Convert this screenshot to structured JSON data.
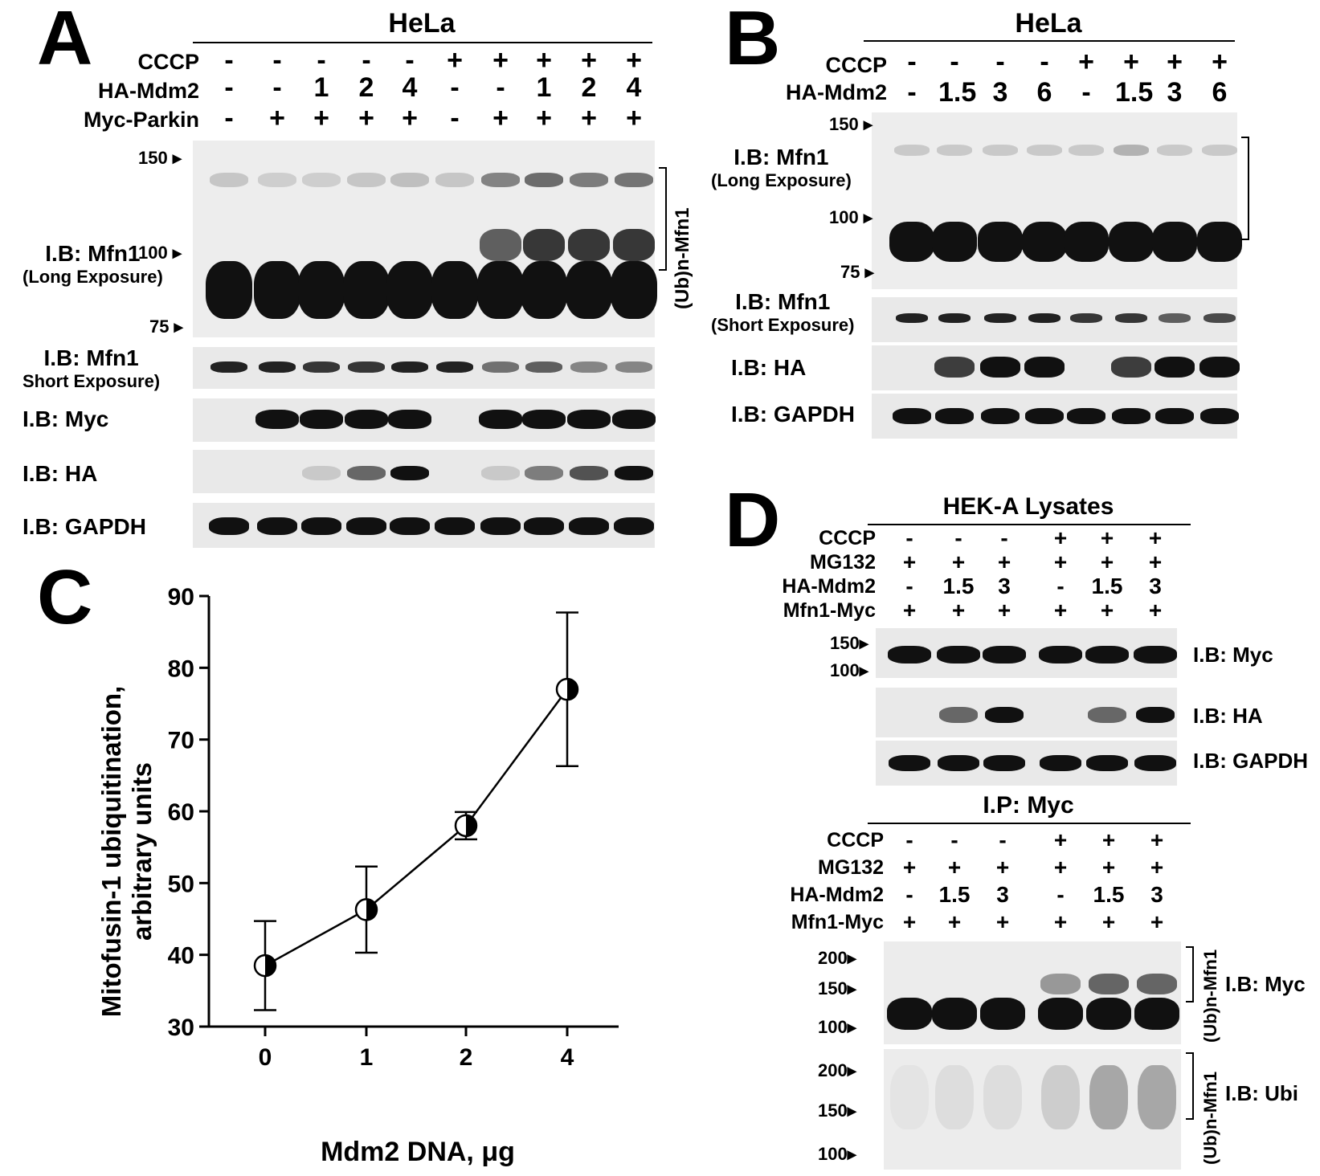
{
  "panelA": {
    "letter": "A",
    "cell_line": "HeLa",
    "row_labels": [
      "CCCP",
      "HA-Mdm2",
      "Myc-Parkin"
    ],
    "cccp": [
      "-",
      "-",
      "-",
      "-",
      "-",
      "+",
      "+",
      "+",
      "+",
      "+"
    ],
    "mdm2": [
      "-",
      "-",
      "1",
      "2",
      "4",
      "-",
      "-",
      "1",
      "2",
      "4"
    ],
    "parkin": [
      "-",
      "+",
      "+",
      "+",
      "+",
      "-",
      "+",
      "+",
      "+",
      "+"
    ],
    "mw": [
      "150",
      "100",
      "75"
    ],
    "blot_labels": {
      "mfn1_long": "I.B: Mfn1",
      "mfn1_long_sub": "(Long Exposure)",
      "mfn1_short": "I.B: Mfn1",
      "mfn1_short_sub": "Short Exposure)",
      "myc": "I.B: Myc",
      "ha": "I.B: HA",
      "gapdh": "I.B: GAPDH"
    },
    "ub_label": "(Ub)n-Mfn1"
  },
  "panelB": {
    "letter": "B",
    "cell_line": "HeLa",
    "row_labels": [
      "CCCP",
      "HA-Mdm2"
    ],
    "cccp": [
      "-",
      "-",
      "-",
      "-",
      "+",
      "+",
      "+",
      "+"
    ],
    "mdm2": [
      "-",
      "1.5",
      "3",
      "6",
      "-",
      "1.5",
      "3",
      "6"
    ],
    "mw": [
      "150",
      "100",
      "75"
    ],
    "blot_labels": {
      "mfn1_long": "I.B: Mfn1",
      "mfn1_long_sub": "(Long Exposure)",
      "mfn1_short": "I.B: Mfn1",
      "mfn1_short_sub": "(Short Exposure)",
      "ha": "I.B: HA",
      "gapdh": "I.B: GAPDH"
    }
  },
  "panelC": {
    "letter": "C",
    "chart_data": {
      "type": "line",
      "x": [
        0,
        1,
        2,
        4
      ],
      "xticks": [
        "0",
        "1",
        "2",
        "4"
      ],
      "y": [
        38.5,
        46.3,
        58.0,
        77.0
      ],
      "yerr": [
        6.2,
        6.0,
        1.9,
        10.7
      ],
      "ylim": [
        30,
        90
      ],
      "yticks": [
        "30",
        "40",
        "50",
        "60",
        "70",
        "80",
        "90"
      ],
      "xlabel": "Mdm2 DNA, μg",
      "ylabel_line1": "Mitofusin-1 ubiquitination,",
      "ylabel_line2": "arbitrary units"
    }
  },
  "panelD": {
    "letter": "D",
    "lysates_title": "HEK-A Lysates",
    "ip_title": "I.P: Myc",
    "row_labels": [
      "CCCP",
      "MG132",
      "HA-Mdm2",
      "Mfn1-Myc"
    ],
    "cccp": [
      "-",
      "-",
      "-",
      "+",
      "+",
      "+"
    ],
    "mg132": [
      "+",
      "+",
      "+",
      "+",
      "+",
      "+"
    ],
    "mdm2": [
      "-",
      "1.5",
      "3",
      "-",
      "1.5",
      "3"
    ],
    "mfn1myc": [
      "+",
      "+",
      "+",
      "+",
      "+",
      "+"
    ],
    "mw_lys": [
      "150",
      "100"
    ],
    "mw_ip": [
      "200",
      "150",
      "100"
    ],
    "blot_labels": {
      "myc": "I.B: Myc",
      "ha": "I.B: HA",
      "gapdh": "I.B: GAPDH",
      "ip_myc": "I.B: Myc",
      "ip_ubi": "I.B: Ubi"
    },
    "ub_label": "(Ub)n-Mfn1"
  }
}
